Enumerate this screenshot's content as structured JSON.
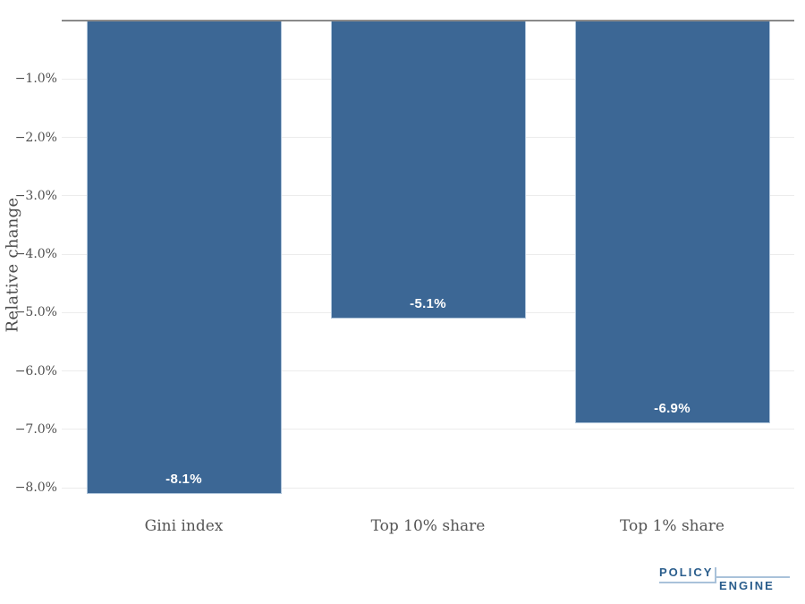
{
  "chart_data": {
    "type": "bar",
    "title": "",
    "xlabel": "",
    "ylabel": "Relative change",
    "categories": [
      "Gini index",
      "Top 10% share",
      "Top 1% share"
    ],
    "values": [
      -8.1,
      -5.1,
      -6.9
    ],
    "value_labels": [
      "-8.1%",
      "-5.1%",
      "-6.9%"
    ],
    "yticks": [
      {
        "value": -1,
        "label": "−1.0%"
      },
      {
        "value": -2,
        "label": "−2.0%"
      },
      {
        "value": -3,
        "label": "−3.0%"
      },
      {
        "value": -4,
        "label": "−4.0%"
      },
      {
        "value": -5,
        "label": "−5.0%"
      },
      {
        "value": -6,
        "label": "−6.0%"
      },
      {
        "value": -7,
        "label": "−7.0%"
      },
      {
        "value": -8,
        "label": "−8.0%"
      }
    ],
    "ylim": [
      -8.35,
      0
    ],
    "grid": true,
    "legend_position": "none",
    "colors": {
      "bar": "#3c6795",
      "bar_border": "#aec4da",
      "value_label": "#ffffff",
      "gridline": "#ececec",
      "zero_line": "#8a8a8a",
      "tick_text": "#4f4f4f",
      "axis_title_text": "#4d4d4d"
    }
  },
  "branding": {
    "logo_top": "POLICY",
    "logo_bottom": "ENGINE",
    "logo_text_color": "#2a5d8c",
    "logo_line_color": "#a9c2da"
  }
}
